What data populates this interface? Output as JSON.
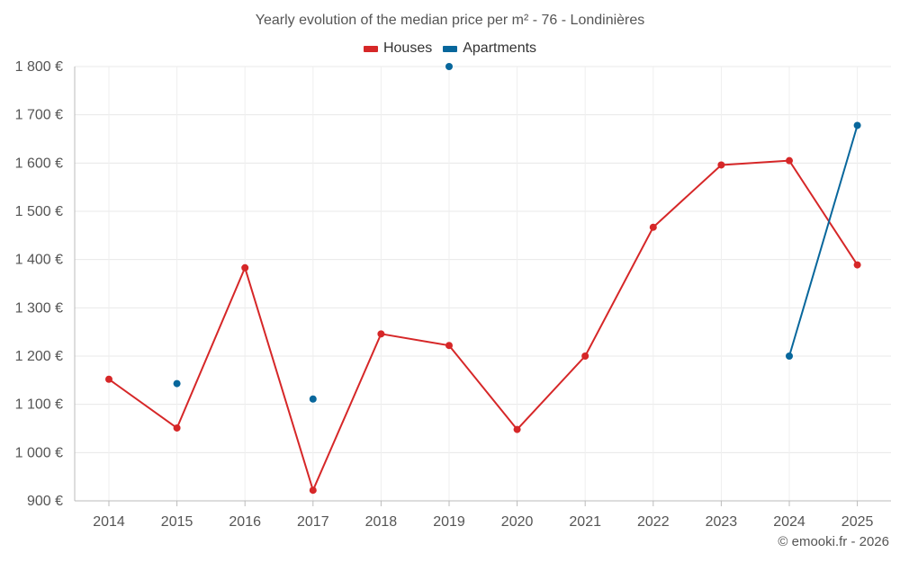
{
  "chart_data": {
    "type": "line",
    "title": "Yearly evolution of the median price per m² - 76 - Londinières",
    "x": [
      "2014",
      "2015",
      "2016",
      "2017",
      "2018",
      "2019",
      "2020",
      "2021",
      "2022",
      "2023",
      "2024",
      "2025"
    ],
    "ylim": [
      900,
      1800
    ],
    "yticks": [
      900,
      1000,
      1100,
      1200,
      1300,
      1400,
      1500,
      1600,
      1700,
      1800
    ],
    "ytick_labels": [
      "900 €",
      "1 000 €",
      "1 100 €",
      "1 200 €",
      "1 300 €",
      "1 400 €",
      "1 500 €",
      "1 600 €",
      "1 700 €",
      "1 800 €"
    ],
    "grid": true,
    "legend_position": "top-center",
    "series": [
      {
        "name": "Houses",
        "color": "#d62728",
        "values": [
          1152,
          1051,
          1383,
          922,
          1246,
          1222,
          1048,
          1200,
          1467,
          1596,
          1605,
          1389
        ]
      },
      {
        "name": "Apartments",
        "color": "#08679c",
        "values": [
          null,
          1143,
          null,
          1111,
          null,
          1800,
          null,
          null,
          null,
          null,
          1200,
          1678
        ]
      }
    ]
  },
  "credit": "© emooki.fr - 2026"
}
